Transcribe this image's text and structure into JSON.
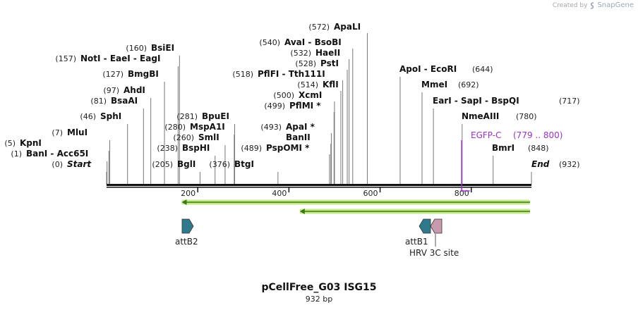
{
  "watermark": {
    "created_by": "Created by",
    "app": "SnapGene"
  },
  "title": "pCellFree_G03 ISG15",
  "length_label": "932 bp",
  "sequence_length": 932,
  "colors": {
    "backbone": "#111111",
    "site_line": "#777777",
    "feature_label": "#9b30c8",
    "arrow_fill": "#2e7a8c",
    "arrow_alt_fill": "#c89ab0",
    "orf_line": "#3a7a10",
    "orf_glow": "#c6e88a"
  },
  "sites": [
    {
      "pos": "(0)",
      "name": "Start",
      "italic": true,
      "bp": 0
    },
    {
      "pos": "(1)",
      "name": "BanI  -  Acc65I",
      "bp": 1
    },
    {
      "pos": "(5)",
      "name": "KpnI",
      "bp": 5
    },
    {
      "pos": "(7)",
      "name": "MluI",
      "bp": 7
    },
    {
      "pos": "(46)",
      "name": "SphI",
      "bp": 46
    },
    {
      "pos": "(81)",
      "name": "BsaAI",
      "bp": 81
    },
    {
      "pos": "(97)",
      "name": "AhdI",
      "bp": 97
    },
    {
      "pos": "(127)",
      "name": "BmgBI",
      "bp": 127
    },
    {
      "pos": "(157)",
      "name": "NotI  -  EaeI  -  EagI",
      "bp": 157
    },
    {
      "pos": "(160)",
      "name": "BsiEI",
      "bp": 160
    },
    {
      "pos": "(205)",
      "name": "BglI",
      "bp": 205
    },
    {
      "pos": "(238)",
      "name": "BspHI",
      "bp": 238
    },
    {
      "pos": "(260)",
      "name": "SmlI",
      "bp": 260
    },
    {
      "pos": "(280)",
      "name": "MspA1I",
      "bp": 280
    },
    {
      "pos": "(281)",
      "name": "BpuEI",
      "bp": 281
    },
    {
      "pos": "(376)",
      "name": "BtgI",
      "bp": 376
    },
    {
      "pos": "(489)",
      "name": "PspOMI *",
      "bp": 489
    },
    {
      "pos": "",
      "name": "BanII",
      "bp": 492
    },
    {
      "pos": "(493)",
      "name": "ApaI *",
      "bp": 493
    },
    {
      "pos": "(499)",
      "name": "PflMI *",
      "bp": 499
    },
    {
      "pos": "(500)",
      "name": "XcmI",
      "bp": 500
    },
    {
      "pos": "(514)",
      "name": "KflI",
      "bp": 514
    },
    {
      "pos": "(518)",
      "name": "PflFI  -  Tth111I",
      "bp": 518
    },
    {
      "pos": "(528)",
      "name": "PstI",
      "bp": 528
    },
    {
      "pos": "(532)",
      "name": "HaeII",
      "bp": 532
    },
    {
      "pos": "(540)",
      "name": "AvaI  -  BsoBI",
      "bp": 540
    },
    {
      "pos": "(572)",
      "name": "ApaLI",
      "bp": 572
    },
    {
      "pos": "(644)",
      "name": "ApoI  -  EcoRI",
      "bp": 644
    },
    {
      "pos": "(692)",
      "name": "MmeI",
      "bp": 692
    },
    {
      "pos": "(717)",
      "name": "EarI  -  SapI  -  BspQI",
      "bp": 717
    },
    {
      "pos": "(780)",
      "name": "NmeAIII",
      "bp": 780
    },
    {
      "pos": "(848)",
      "name": "BmrI",
      "bp": 848
    },
    {
      "pos": "(932)",
      "name": "End",
      "italic": true,
      "bp": 932
    }
  ],
  "feature_label": {
    "name": "EGFP-C",
    "range": "(779 .. 800)",
    "start": 779,
    "end": 800
  },
  "ticks": [
    {
      "label": "200",
      "bp": 200
    },
    {
      "label": "400",
      "bp": 400
    },
    {
      "label": "600",
      "bp": 600
    },
    {
      "label": "800",
      "bp": 800
    }
  ],
  "orfs": [
    {
      "start": 168,
      "end": 932,
      "direction": "reverse"
    },
    {
      "start": 427,
      "end": 932,
      "direction": "reverse"
    }
  ],
  "features": [
    {
      "name": "attB2",
      "start": 168,
      "end": 190,
      "direction": "forward",
      "color": "#2e7a8c"
    },
    {
      "name": "attB1",
      "start": 689,
      "end": 712,
      "direction": "reverse",
      "color": "#2e7a8c"
    },
    {
      "name": "HRV 3C site",
      "start": 712,
      "end": 736,
      "direction": "reverse",
      "color": "#c89ab0"
    }
  ]
}
